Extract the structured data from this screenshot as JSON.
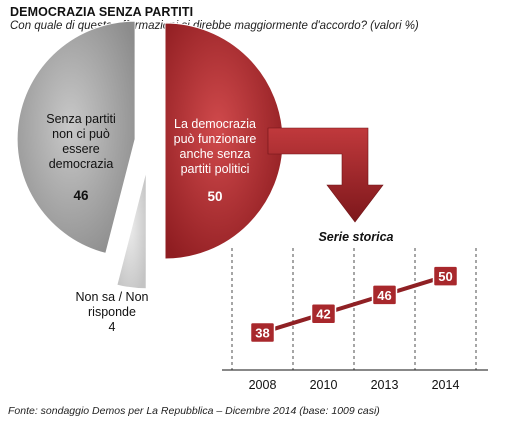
{
  "header": {
    "title": "DEMOCRAZIA  SENZA PARTITI",
    "subtitle": "Con quale di queste affermazioni si direbbe maggiormente d'accordo? (valori %)"
  },
  "footer": {
    "source": "Fonte: sondaggio Demos per La Repubblica – Dicembre 2014 (base: 1009 casi)"
  },
  "colors": {
    "red": "#b32b2f",
    "red_dark": "#7a1518",
    "gray": "#a9a9a9",
    "gray_light": "#d9d9d9"
  },
  "chart_data": [
    {
      "type": "pie",
      "slices": [
        {
          "label_lines": [
            "Senza partiti",
            "non ci può",
            "essere",
            "democrazia"
          ],
          "value": 46,
          "value_label": "46",
          "color": "#a9a9a9"
        },
        {
          "label_lines": [
            "La democrazia",
            "può funzionare",
            "anche senza",
            "partiti politici"
          ],
          "value": 50,
          "value_label": "50",
          "color": "#b32b2f"
        },
        {
          "label_lines": [
            "Non sa / Non",
            "risponde"
          ],
          "value": 4,
          "value_label": "4",
          "color": "#d9d9d9"
        }
      ]
    },
    {
      "type": "line",
      "title": "Serie storica",
      "categories": [
        "2008",
        "2010",
        "2013",
        "2014"
      ],
      "series": [
        {
          "values": [
            38,
            42,
            46,
            50
          ]
        }
      ],
      "ylim": [
        30,
        56
      ]
    }
  ]
}
